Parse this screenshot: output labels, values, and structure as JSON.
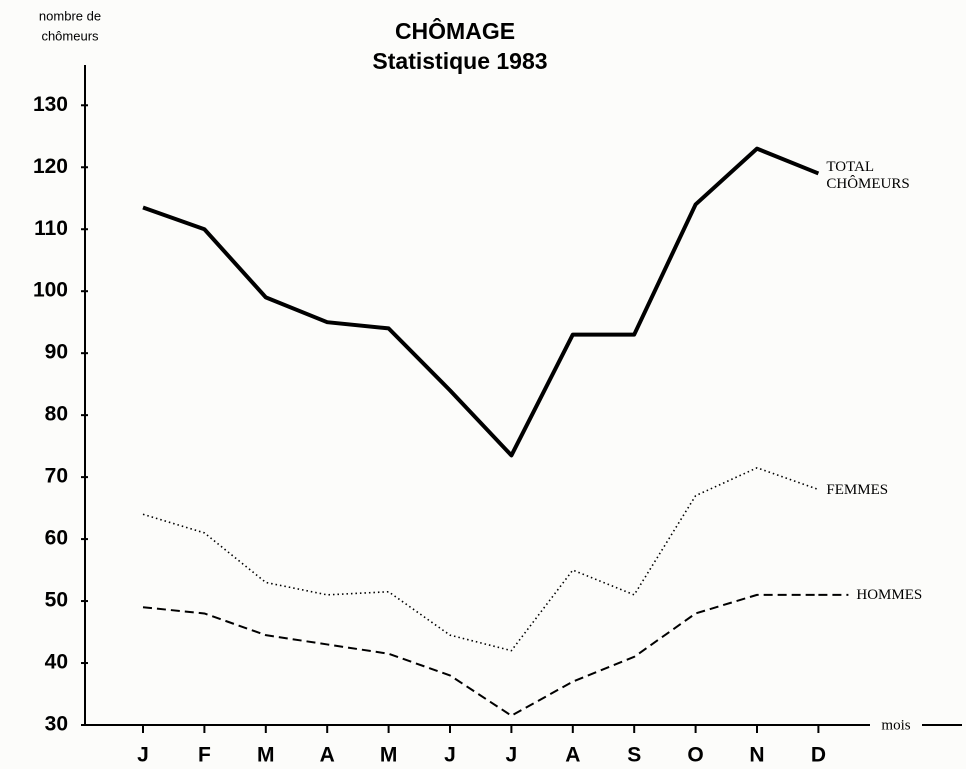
{
  "chart_data": {
    "type": "line",
    "title": "CHÔMAGE",
    "subtitle": "Statistique 1983",
    "y_label": [
      "nombre de",
      "chômeurs"
    ],
    "x_label": "mois",
    "categories": [
      "J",
      "F",
      "M",
      "A",
      "M",
      "J",
      "J",
      "A",
      "S",
      "O",
      "N",
      "D"
    ],
    "series": [
      {
        "name": "TOTAL CHÔMEURS",
        "color": "#000000",
        "line_style": "solid",
        "values": [
          113.5,
          110,
          99,
          95,
          94,
          84,
          73.5,
          93,
          93,
          114,
          123,
          119
        ]
      },
      {
        "name": "FEMMES",
        "color": "#000000",
        "line_style": "dotted",
        "values": [
          64,
          61,
          53,
          51,
          51.5,
          44.5,
          42,
          55,
          51,
          67,
          71.5,
          68
        ]
      },
      {
        "name": "HOMMES",
        "color": "#000000",
        "line_style": "dashed",
        "values": [
          49,
          48,
          44.5,
          43,
          41.5,
          38,
          31.5,
          37,
          41,
          48,
          51,
          51
        ]
      }
    ],
    "ylim": [
      30,
      136.5
    ],
    "yticks": [
      30,
      40,
      50,
      60,
      70,
      80,
      90,
      100,
      110,
      120,
      130
    ],
    "grid": false
  }
}
